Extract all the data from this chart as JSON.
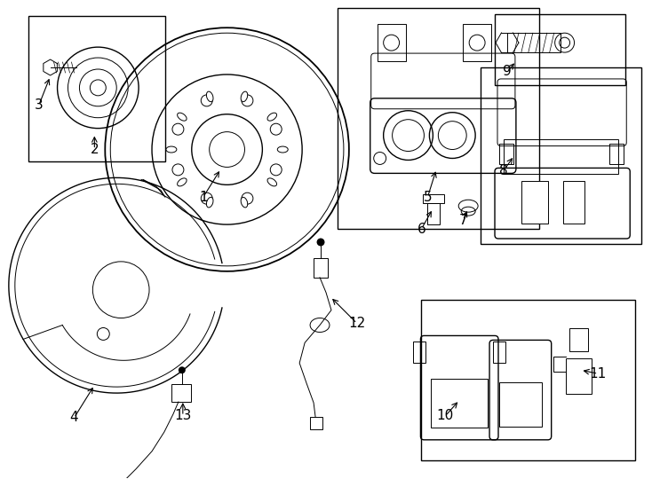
{
  "background_color": "#ffffff",
  "line_color": "#000000",
  "fig_width": 7.34,
  "fig_height": 5.4,
  "dpi": 100,
  "label_fontsize": 11
}
